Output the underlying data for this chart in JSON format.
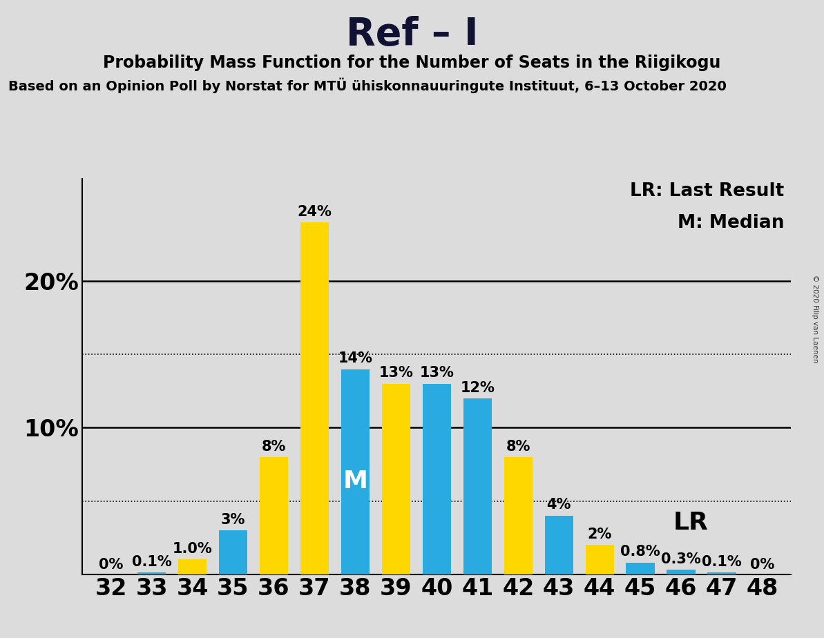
{
  "title": "Ref – I",
  "subtitle": "Probability Mass Function for the Number of Seats in the Riigikogu",
  "source_text": "Based on an Opinion Poll by Norstat for MTÜ ühiskonnauuringute Instituut, 6–13 October 2020",
  "copyright_text": "© 2020 Filip van Laenen",
  "legend_lr": "LR: Last Result",
  "legend_m": "M: Median",
  "lr_label": "LR",
  "m_label": "M",
  "seats": [
    32,
    33,
    34,
    35,
    36,
    37,
    38,
    39,
    40,
    41,
    42,
    43,
    44,
    45,
    46,
    47,
    48
  ],
  "values": [
    0.0,
    0.1,
    1.0,
    3.0,
    8.0,
    24.0,
    14.0,
    13.0,
    13.0,
    12.0,
    8.0,
    4.0,
    2.0,
    0.8,
    0.3,
    0.1,
    0.0
  ],
  "colors": [
    "#29ABE2",
    "#29ABE2",
    "#FFD700",
    "#29ABE2",
    "#FFD700",
    "#FFD700",
    "#29ABE2",
    "#FFD700",
    "#29ABE2",
    "#29ABE2",
    "#FFD700",
    "#29ABE2",
    "#FFD700",
    "#29ABE2",
    "#29ABE2",
    "#29ABE2",
    "#29ABE2"
  ],
  "labels": [
    "0%",
    "0.1%",
    "1.0%",
    "3%",
    "8%",
    "24%",
    "14%",
    "13%",
    "13%",
    "12%",
    "8%",
    "4%",
    "2%",
    "0.8%",
    "0.3%",
    "0.1%",
    "0%"
  ],
  "blue_color": "#29ABE2",
  "yellow_color": "#FFD700",
  "median_seat_idx": 6,
  "lr_seat_idx": 12,
  "ylim": [
    0,
    27
  ],
  "ytick_positions": [
    0,
    10,
    20
  ],
  "ytick_labels": [
    "",
    "10%",
    "20%"
  ],
  "dotted_lines": [
    5,
    15
  ],
  "solid_lines": [
    10,
    20
  ],
  "bar_width": 0.7,
  "bg_color": "#DCDCDC",
  "title_fontsize": 40,
  "subtitle_fontsize": 17,
  "source_fontsize": 14,
  "axis_fontsize": 24,
  "bar_label_fontsize": 15,
  "legend_fontsize": 19,
  "m_label_fontsize": 26
}
